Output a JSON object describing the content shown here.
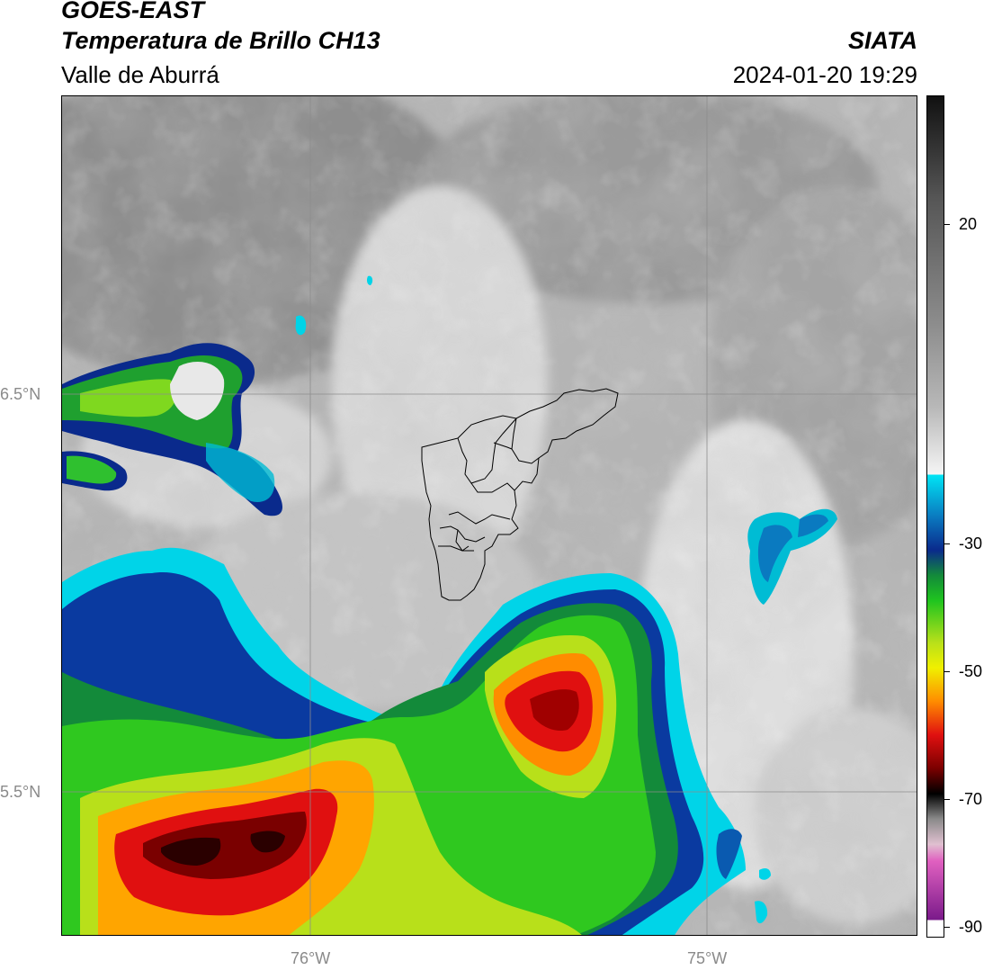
{
  "header": {
    "satellite": "GOES-EAST",
    "product": "Temperatura de Brillo CH13",
    "region": "Valle de Aburrá",
    "organization": "SIATA",
    "datetime": "2024-01-20 19:29"
  },
  "map": {
    "lat_labels": [
      "6.5°N",
      "5.5°N"
    ],
    "lon_labels": [
      "76°W",
      "75°W"
    ],
    "gridlines": true
  },
  "colorbar": {
    "ticks": [
      "20",
      "-30",
      "-50",
      "-70",
      "-90"
    ],
    "range": [
      -90,
      30
    ],
    "colors": {
      "warm": "#8c8c8c",
      "cold_cyan": "#00e5f5",
      "cold_blue": "#0a2a8c",
      "green": "#1fc41f",
      "yellow": "#f0f000",
      "orange": "#ff8c00",
      "red": "#e01010",
      "dark_red": "#3a0000",
      "magenta": "#d040c0"
    }
  }
}
